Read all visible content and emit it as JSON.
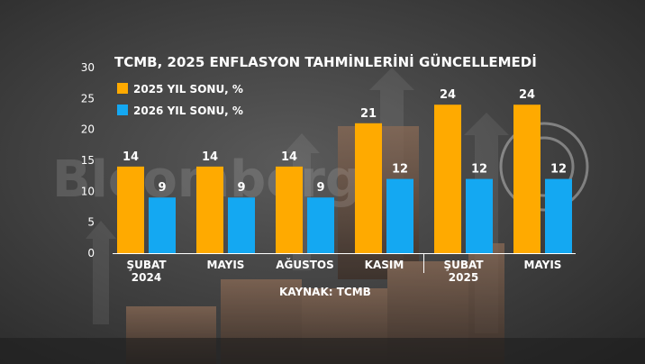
{
  "chart_data": {
    "type": "bar",
    "title": "TCMB, 2025 ENFLASYON TAHMİNLERİNİ GÜNCELLEMEDİ",
    "categories": [
      [
        "ŞUBAT",
        "2024"
      ],
      [
        "MAYIS"
      ],
      [
        "AĞUSTOS"
      ],
      [
        "KASIM"
      ],
      [
        "ŞUBAT",
        "2025"
      ],
      [
        "MAYIS"
      ]
    ],
    "series": [
      {
        "name": "2025 YIL SONU, %",
        "color": "#FFAA00",
        "values": [
          14,
          14,
          14,
          21,
          24,
          24
        ]
      },
      {
        "name": "2026 YIL SONU, %",
        "color": "#14A8F2",
        "values": [
          9,
          9,
          9,
          12,
          12,
          12
        ]
      }
    ],
    "ylim": [
      0,
      30
    ],
    "yticks": [
      0,
      5,
      10,
      15,
      20,
      25,
      30
    ],
    "legend": "top-left",
    "grid": false,
    "source": "KAYNAK: TCMB",
    "watermark": "Bloomberg"
  }
}
